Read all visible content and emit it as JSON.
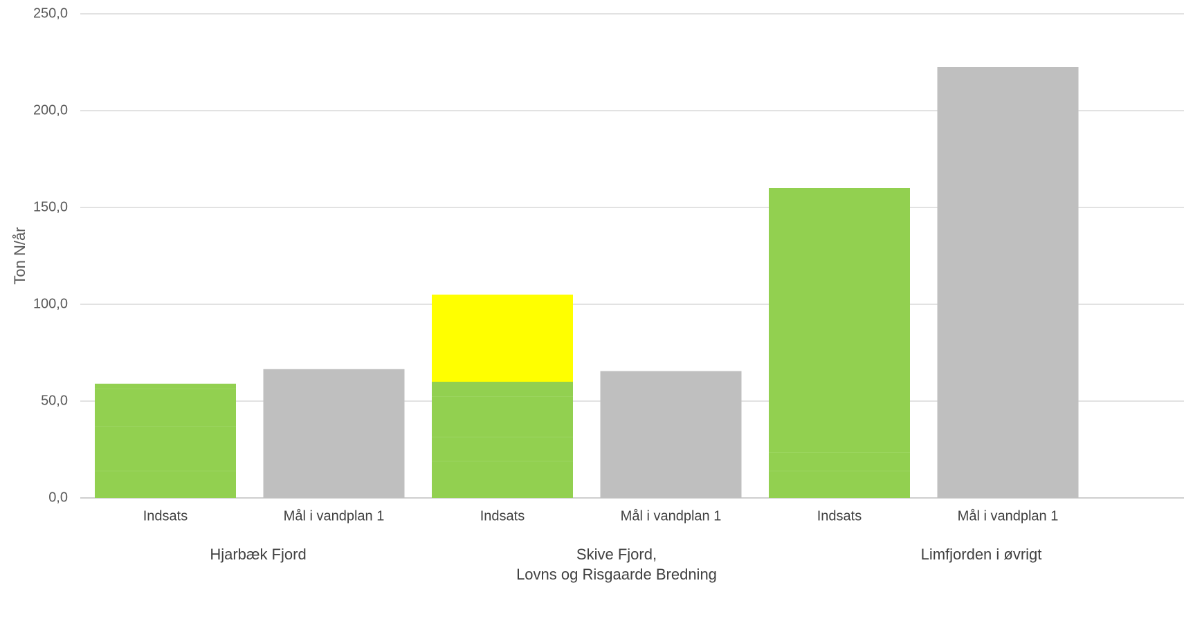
{
  "chart_data": {
    "type": "bar",
    "stacked": true,
    "ylabel": "Ton N/år",
    "ylim": [
      0,
      250
    ],
    "yticks": [
      "0,0",
      "50,0",
      "100,0",
      "150,0",
      "200,0",
      "250,0"
    ],
    "ytick_values": [
      0,
      50,
      100,
      150,
      200,
      250
    ],
    "grid": true,
    "categories": [
      "Indsats",
      "Mål i vandplan 1",
      "Indsats",
      "Mål i vandplan 1",
      "Indsats",
      "Mål i vandplan 1"
    ],
    "groups": [
      {
        "label_lines": [
          "Hjarbæk Fjord"
        ],
        "span": [
          0,
          1
        ]
      },
      {
        "label_lines": [
          "Skive Fjord,",
          "Lovns og Risgaarde Bredning"
        ],
        "span": [
          2,
          3
        ]
      },
      {
        "label_lines": [
          "Limfjorden i øvrigt"
        ],
        "span": [
          4,
          5
        ]
      }
    ],
    "bars": [
      {
        "segments": [
          {
            "value": 14,
            "color": "#92d050"
          },
          {
            "value": 23,
            "color": "#92d050"
          },
          {
            "value": 19.5,
            "color": "#92d050"
          },
          {
            "value": 2.5,
            "color": "#92d050"
          }
        ]
      },
      {
        "segments": [
          {
            "value": 66.5,
            "color": "#bfbfbf"
          }
        ]
      },
      {
        "segments": [
          {
            "value": 19,
            "color": "#92d050"
          },
          {
            "value": 12.5,
            "color": "#92d050"
          },
          {
            "value": 21,
            "color": "#92d050"
          },
          {
            "value": 7.5,
            "color": "#92d050"
          },
          {
            "value": 45,
            "color": "#ffff00"
          }
        ]
      },
      {
        "segments": [
          {
            "value": 65.5,
            "color": "#bfbfbf"
          }
        ]
      },
      {
        "segments": [
          {
            "value": 14,
            "color": "#92d050"
          },
          {
            "value": 9.5,
            "color": "#92d050"
          },
          {
            "value": 136.5,
            "color": "#92d050"
          }
        ]
      },
      {
        "segments": [
          {
            "value": 222.5,
            "color": "#bfbfbf"
          }
        ]
      }
    ],
    "colors": {
      "grid": "#d9d9d9",
      "axis": "#bfbfbf",
      "segment_divider": "#a4da6f"
    }
  }
}
